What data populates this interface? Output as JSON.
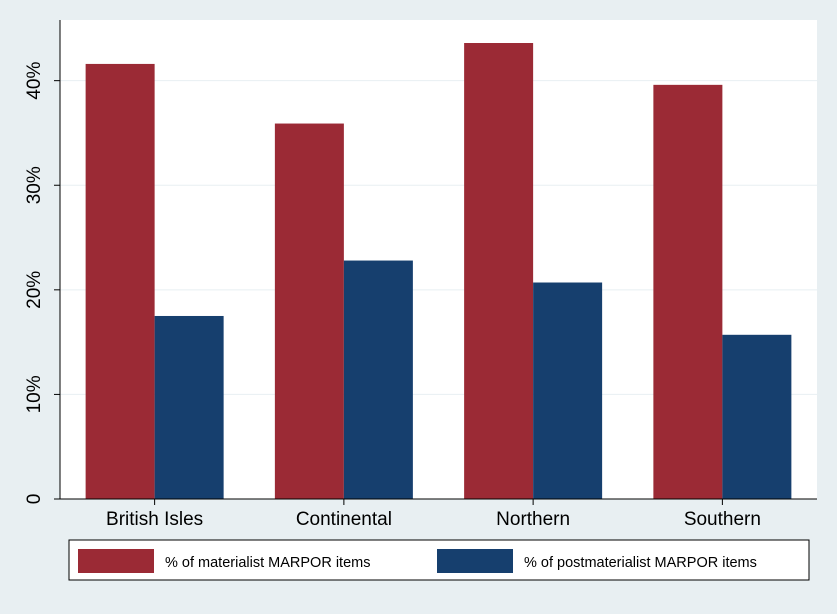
{
  "chart_data": {
    "type": "bar",
    "categories": [
      "British Isles",
      "Continental",
      "Northern",
      "Southern"
    ],
    "series": [
      {
        "name": "% of materialist MARPOR items",
        "values": [
          41.6,
          35.9,
          43.6,
          39.6
        ],
        "color": "#9b2a35"
      },
      {
        "name": "% of postmaterialist MARPOR items",
        "values": [
          17.5,
          22.8,
          20.7,
          15.7
        ],
        "color": "#163f6e"
      }
    ],
    "ylim": [
      0,
      45.8
    ],
    "yticks": [
      0,
      10,
      20,
      30,
      40
    ],
    "ytick_labels": [
      "0",
      "10%",
      "20%",
      "30%",
      "40%"
    ],
    "grid": true,
    "legend_position": "bottom",
    "title": "",
    "xlabel": "",
    "ylabel": ""
  },
  "colors": {
    "background": "#e8eff2",
    "plot_background": "#ffffff",
    "gridline": "#e8eff2",
    "axis": "#000000"
  }
}
